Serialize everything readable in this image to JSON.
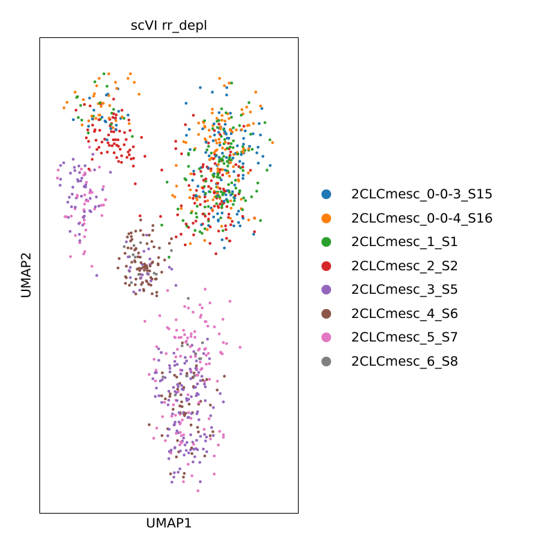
{
  "chart_data": {
    "type": "scatter",
    "title": "scVI rr_depl",
    "xlabel": "UMAP1",
    "ylabel": "UMAP2",
    "xlim": [
      0,
      100
    ],
    "ylim": [
      0,
      100
    ],
    "ticks_shown": false,
    "grid": false,
    "legend_position": "right, outside plot",
    "series": [
      {
        "name": "2CLCmesc_0-0-3_S15",
        "color": "#1f77b4",
        "regions": [
          {
            "cx": 22,
            "cy": 86,
            "rx": 12,
            "ry": 6,
            "count": 18,
            "points": [
              [
                33,
                85
              ],
              [
                74,
                91
              ]
            ]
          },
          {
            "cx": 74,
            "cy": 79,
            "rx": 13,
            "ry": 8,
            "count": 55,
            "points": [
              [
                63,
                91
              ],
              [
                68,
                90
              ],
              [
                64,
                82
              ],
              [
                89,
                76
              ],
              [
                92,
                74
              ],
              [
                70,
                74
              ],
              [
                73,
                56
              ]
            ]
          },
          {
            "cx": 70,
            "cy": 67,
            "rx": 15,
            "ry": 8,
            "count": 40,
            "points": []
          }
        ]
      },
      {
        "name": "2CLCmesc_0-0-4_S16",
        "color": "#ff7f0e",
        "regions": [
          {
            "cx": 22,
            "cy": 87,
            "rx": 12,
            "ry": 6,
            "count": 28,
            "points": [
              [
                21,
                93
              ],
              [
                25,
                94
              ],
              [
                34,
                94
              ],
              [
                33,
                93
              ],
              [
                12,
                89
              ],
              [
                11,
                90
              ]
            ]
          },
          {
            "cx": 73,
            "cy": 81,
            "rx": 13,
            "ry": 8,
            "count": 60,
            "points": [
              [
                75,
                92
              ],
              [
                71,
                93
              ],
              [
                86,
                90
              ],
              [
                88,
                87
              ],
              [
                57,
                79
              ],
              [
                53,
                74
              ],
              [
                93,
                79
              ]
            ]
          },
          {
            "cx": 71,
            "cy": 67,
            "rx": 15,
            "ry": 8,
            "count": 45,
            "points": []
          }
        ]
      },
      {
        "name": "2CLCmesc_1_S1",
        "color": "#2ca02c",
        "regions": [
          {
            "cx": 21,
            "cy": 86,
            "rx": 12,
            "ry": 6,
            "count": 15,
            "points": [
              [
                23,
                94
              ],
              [
                12,
                89
              ]
            ]
          },
          {
            "cx": 75,
            "cy": 78,
            "rx": 13,
            "ry": 9,
            "count": 55,
            "points": [
              [
                76,
                92
              ],
              [
                80,
                85
              ]
            ]
          },
          {
            "cx": 70,
            "cy": 67,
            "rx": 16,
            "ry": 8,
            "count": 65,
            "points": [
              [
                88,
                62
              ],
              [
                47,
                61
              ],
              [
                50,
                54
              ]
            ]
          }
        ]
      },
      {
        "name": "2CLCmesc_2_S2",
        "color": "#d62728",
        "regions": [
          {
            "cx": 27,
            "cy": 80,
            "rx": 12,
            "ry": 7,
            "count": 65,
            "points": [
              [
                40,
                76
              ],
              [
                36,
                70
              ]
            ]
          },
          {
            "cx": 71,
            "cy": 74,
            "rx": 14,
            "ry": 9,
            "count": 55,
            "points": [
              [
                47,
                73
              ],
              [
                38,
                63
              ]
            ]
          },
          {
            "cx": 66,
            "cy": 63,
            "rx": 15,
            "ry": 7,
            "count": 45,
            "points": [
              [
                55,
                59
              ],
              [
                67,
                57
              ]
            ]
          }
        ]
      },
      {
        "name": "2CLCmesc_3_S5",
        "color": "#9467bd",
        "regions": [
          {
            "cx": 14,
            "cy": 68,
            "rx": 9,
            "ry": 8,
            "count": 45,
            "points": [
              [
                5,
                74
              ],
              [
                5,
                71
              ],
              [
                8,
                66
              ],
              [
                20,
                50
              ]
            ]
          },
          {
            "cx": 40,
            "cy": 53,
            "rx": 11,
            "ry": 6,
            "count": 20,
            "points": []
          },
          {
            "cx": 56,
            "cy": 27,
            "rx": 13,
            "ry": 7,
            "count": 75,
            "points": []
          },
          {
            "cx": 58,
            "cy": 14,
            "rx": 8,
            "ry": 7,
            "count": 50,
            "points": [
              [
                52,
                6
              ],
              [
                63,
                5
              ]
            ]
          }
        ]
      },
      {
        "name": "2CLCmesc_4_S6",
        "color": "#8c564b",
        "regions": [
          {
            "cx": 39,
            "cy": 53,
            "rx": 9,
            "ry": 7,
            "count": 80,
            "points": [
              [
                46,
                56
              ],
              [
                51,
                58
              ],
              [
                43,
                46
              ]
            ]
          },
          {
            "cx": 57,
            "cy": 21,
            "rx": 12,
            "ry": 11,
            "count": 50,
            "points": [
              [
                73,
                28
              ],
              [
                70,
                25
              ],
              [
                56,
                6
              ]
            ]
          }
        ]
      },
      {
        "name": "2CLCmesc_5_S7",
        "color": "#e377c2",
        "regions": [
          {
            "cx": 15,
            "cy": 65,
            "rx": 10,
            "ry": 10,
            "count": 40,
            "points": [
              [
                4,
                73
              ],
              [
                18,
                52
              ],
              [
                40,
                40
              ]
            ]
          },
          {
            "cx": 60,
            "cy": 35,
            "rx": 15,
            "ry": 9,
            "count": 65,
            "points": [
              [
                65,
                47
              ],
              [
                60,
                42
              ],
              [
                67,
                44
              ]
            ]
          },
          {
            "cx": 57,
            "cy": 18,
            "rx": 12,
            "ry": 9,
            "count": 45,
            "points": [
              [
                62,
                3
              ],
              [
                56,
                5
              ]
            ]
          }
        ]
      },
      {
        "name": "2CLCmesc_6_S8",
        "color": "#7f7f7f",
        "regions": [
          {
            "cx": 38,
            "cy": 52,
            "rx": 10,
            "ry": 7,
            "count": 12,
            "points": []
          },
          {
            "cx": 57,
            "cy": 30,
            "rx": 12,
            "ry": 9,
            "count": 10,
            "points": [
              [
                58,
                45
              ]
            ]
          }
        ]
      }
    ]
  }
}
